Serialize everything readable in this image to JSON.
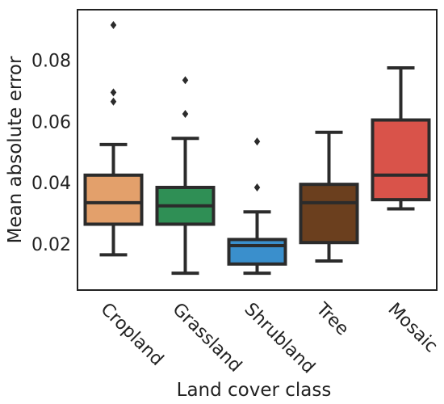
{
  "chart_data": {
    "type": "box",
    "title": "",
    "xlabel": "Land cover class",
    "ylabel": "Mean absolute error",
    "ylim": [
      0.0055,
      0.097
    ],
    "yticks": [
      0.02,
      0.04,
      0.06,
      0.08
    ],
    "ytick_labels": [
      "0.02",
      "0.04",
      "0.06",
      "0.08"
    ],
    "grid": false,
    "legend": "none",
    "categories": [
      "Cropland",
      "Grassland",
      "Shrubland",
      "Tree",
      "Mosaic"
    ],
    "boxes": [
      {
        "category": "Cropland",
        "whisker_low": 0.017,
        "q1": 0.027,
        "median": 0.034,
        "q3": 0.043,
        "whisker_high": 0.053,
        "outliers": [
          0.067,
          0.07,
          0.092
        ],
        "color": "#e3a06b"
      },
      {
        "category": "Grassland",
        "whisker_low": 0.011,
        "q1": 0.027,
        "median": 0.033,
        "q3": 0.039,
        "whisker_high": 0.055,
        "outliers": [
          0.063,
          0.074
        ],
        "color": "#2f8f55"
      },
      {
        "category": "Shrubland",
        "whisker_low": 0.011,
        "q1": 0.014,
        "median": 0.02,
        "q3": 0.022,
        "whisker_high": 0.031,
        "outliers": [
          0.039,
          0.054
        ],
        "color": "#3a8fcc"
      },
      {
        "category": "Tree",
        "whisker_low": 0.015,
        "q1": 0.021,
        "median": 0.034,
        "q3": 0.04,
        "whisker_high": 0.057,
        "outliers": [],
        "color": "#6b3f1e"
      },
      {
        "category": "Mosaic",
        "whisker_low": 0.032,
        "q1": 0.035,
        "median": 0.043,
        "q3": 0.061,
        "whisker_high": 0.078,
        "outliers": [],
        "color": "#d9534a"
      }
    ]
  }
}
